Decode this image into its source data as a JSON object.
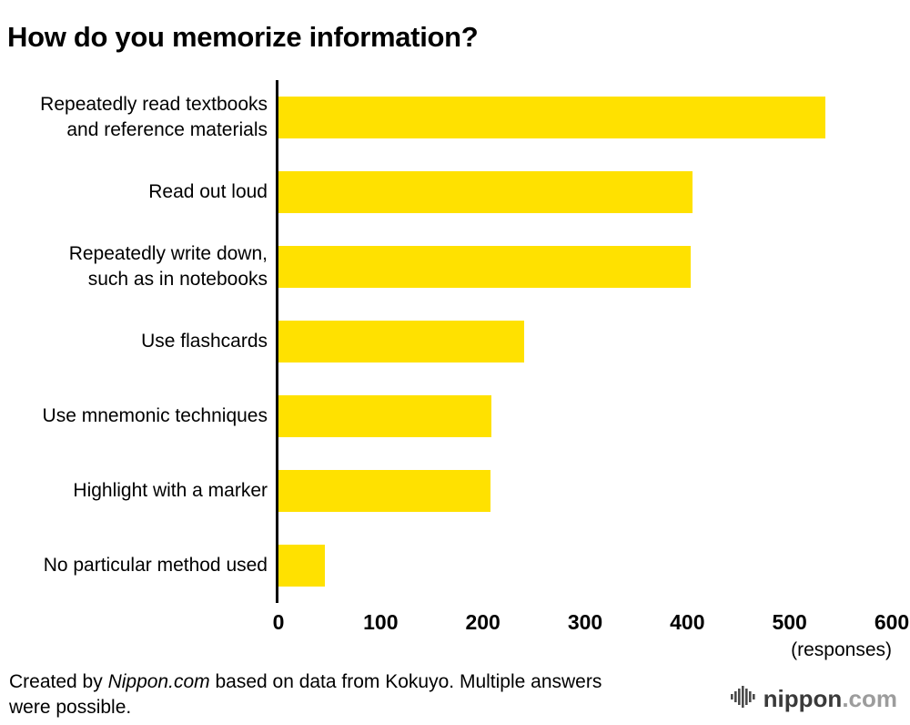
{
  "title": "How do you memorize information?",
  "chart_data": {
    "type": "bar",
    "orientation": "horizontal",
    "title": "How do you memorize information?",
    "categories": [
      "Repeatedly read textbooks\nand reference materials",
      "Read out loud",
      "Repeatedly write down,\nsuch as in notebooks",
      "Use flashcards",
      "Use mnemonic techniques",
      "Highlight with a marker",
      "No particular method used"
    ],
    "values": [
      535,
      405,
      403,
      240,
      208,
      207,
      45
    ],
    "xlim": [
      0,
      600
    ],
    "xticks": [
      0,
      100,
      200,
      300,
      400,
      500,
      600
    ],
    "xlabel": "(responses)",
    "bar_color": "#FFE100",
    "axis_color": "#000000",
    "grid": "off",
    "legend": "none"
  },
  "footer": {
    "prefix": "Created by ",
    "source": "Nippon.com",
    "suffix": " based on data from Kokuyo. Multiple answers were possible."
  },
  "logo": {
    "icon": "nippon-waveform-icon",
    "name": "nippon",
    "tld": ".com"
  }
}
